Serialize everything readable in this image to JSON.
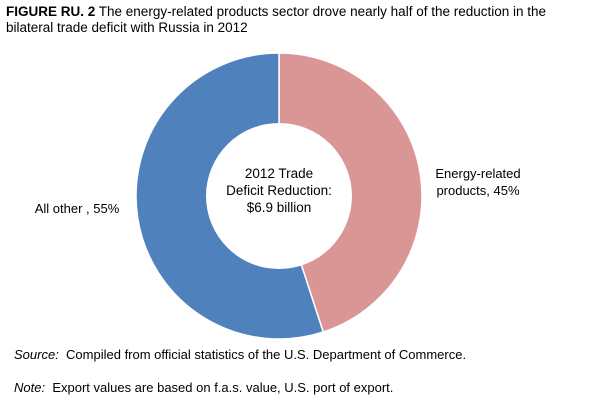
{
  "figure": {
    "label": "FIGURE RU. 2",
    "title": "The energy-related products sector drove nearly half of the reduction in the bilateral trade deficit with Russia in 2012"
  },
  "chart_data": {
    "type": "pie",
    "donut": true,
    "center_text": [
      "2012 Trade",
      "Deficit Reduction:",
      "$6.9 billion"
    ],
    "slices": [
      {
        "label": "Energy-related products",
        "value": 45,
        "label_lines": [
          "Energy-related",
          "products, 45%"
        ],
        "color": "#d99694"
      },
      {
        "label": "All other",
        "value": 55,
        "label_lines": [
          "All other , 55%"
        ],
        "color": "#4f81bd"
      }
    ],
    "legend": false
  },
  "source": {
    "prefix": "Source:",
    "text": "Compiled from official statistics of the U.S. Department of Commerce."
  },
  "note": {
    "prefix": "Note:",
    "text": "Export values are based on f.a.s. value, U.S. port of export."
  }
}
